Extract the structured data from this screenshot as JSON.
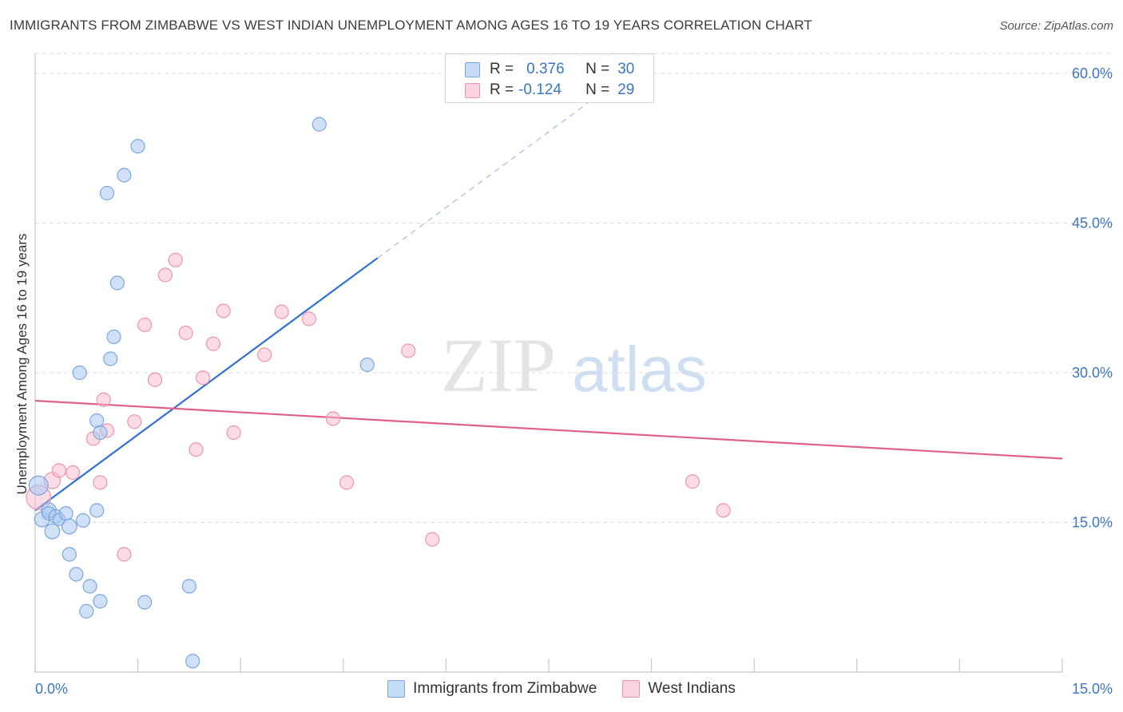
{
  "header": {
    "title": "IMMIGRANTS FROM ZIMBABWE VS WEST INDIAN UNEMPLOYMENT AMONG AGES 16 TO 19 YEARS CORRELATION CHART",
    "source": "Source: ZipAtlas.com"
  },
  "watermark": {
    "zip": "ZIP",
    "atlas": "atlas"
  },
  "colors": {
    "blue_fill": "#a9c8f0",
    "blue_stroke": "#7aa6de",
    "blue_line": "#3070d0",
    "pink_fill": "#f7b9cc",
    "pink_stroke": "#ec93b0",
    "pink_line": "#e0608c",
    "axis_text": "#3b76c4",
    "grid": "#dddddd"
  },
  "legend": {
    "r_label": "R =",
    "n_label": "N =",
    "series": [
      {
        "r": "0.376",
        "n": "30"
      },
      {
        "r": "-0.124",
        "n": "29"
      }
    ]
  },
  "chart_data": {
    "type": "scatter",
    "title": "IMMIGRANTS FROM ZIMBABWE VS WEST INDIAN UNEMPLOYMENT AMONG AGES 16 TO 19 YEARS CORRELATION CHART",
    "xlabel": "",
    "ylabel": "Unemployment Among Ages 16 to 19 years",
    "xlim": [
      0,
      15
    ],
    "ylim": [
      0,
      62
    ],
    "x_tick_labels": [
      {
        "value": 0,
        "label": "0.0%"
      },
      {
        "value": 15,
        "label": "15.0%"
      }
    ],
    "y_ticks": [
      {
        "value": 15,
        "label": "15.0%"
      },
      {
        "value": 30,
        "label": "30.0%"
      },
      {
        "value": 45,
        "label": "45.0%"
      },
      {
        "value": 60,
        "label": "60.0%"
      }
    ],
    "grid": true,
    "series": [
      {
        "name": "Immigrants from Zimbabwe",
        "r": 0.376,
        "n": 30,
        "points": [
          [
            0.05,
            18.7,
            14
          ],
          [
            0.1,
            15.3,
            11
          ],
          [
            0.2,
            16.2,
            11
          ],
          [
            0.25,
            14.1,
            11
          ],
          [
            0.2,
            15.9,
            10
          ],
          [
            0.3,
            15.6,
            10
          ],
          [
            0.35,
            15.3,
            9
          ],
          [
            0.45,
            15.9,
            10
          ],
          [
            0.5,
            14.6,
            11
          ],
          [
            0.5,
            11.8,
            10
          ],
          [
            0.6,
            9.8,
            10
          ],
          [
            0.7,
            15.2,
            10
          ],
          [
            0.75,
            6.1,
            10
          ],
          [
            0.8,
            8.6,
            10
          ],
          [
            0.9,
            16.2,
            10
          ],
          [
            0.95,
            7.1,
            10
          ],
          [
            0.65,
            30.0,
            10
          ],
          [
            0.9,
            25.2,
            10
          ],
          [
            1.1,
            31.4,
            10
          ],
          [
            1.15,
            33.6,
            10
          ],
          [
            1.05,
            48.0,
            10
          ],
          [
            1.3,
            49.8,
            10
          ],
          [
            1.2,
            39.0,
            10
          ],
          [
            1.5,
            52.7,
            10
          ],
          [
            1.6,
            7.0,
            10
          ],
          [
            2.25,
            8.6,
            10
          ],
          [
            2.3,
            1.1,
            10
          ],
          [
            4.15,
            54.9,
            10
          ],
          [
            4.85,
            30.8,
            10
          ],
          [
            0.95,
            24.0,
            10
          ]
        ],
        "trend": {
          "x1": 0.0,
          "y1": 16.2,
          "x2": 5.0,
          "y2": 41.5,
          "x_dash_end": 8.3,
          "y_dash_end": 58.2
        }
      },
      {
        "name": "West Indians",
        "r": -0.124,
        "n": 29,
        "points": [
          [
            0.05,
            17.5,
            18
          ],
          [
            0.25,
            19.2,
            12
          ],
          [
            0.35,
            20.2,
            10
          ],
          [
            0.55,
            20.0,
            10
          ],
          [
            0.85,
            23.4,
            10
          ],
          [
            0.95,
            19.0,
            10
          ],
          [
            1.0,
            27.3,
            10
          ],
          [
            1.05,
            24.2,
            10
          ],
          [
            1.3,
            11.8,
            10
          ],
          [
            1.45,
            25.1,
            10
          ],
          [
            1.6,
            34.8,
            10
          ],
          [
            1.75,
            29.3,
            10
          ],
          [
            1.9,
            39.8,
            10
          ],
          [
            2.05,
            41.3,
            10
          ],
          [
            2.2,
            34.0,
            10
          ],
          [
            2.35,
            22.3,
            10
          ],
          [
            2.45,
            29.5,
            10
          ],
          [
            2.6,
            32.9,
            10
          ],
          [
            2.75,
            36.2,
            10
          ],
          [
            2.9,
            24.0,
            10
          ],
          [
            3.35,
            31.8,
            10
          ],
          [
            3.6,
            36.1,
            10
          ],
          [
            4.0,
            35.4,
            10
          ],
          [
            4.35,
            25.4,
            10
          ],
          [
            4.55,
            19.0,
            10
          ],
          [
            5.45,
            32.2,
            10
          ],
          [
            5.8,
            13.3,
            10
          ],
          [
            9.6,
            19.1,
            10
          ],
          [
            10.05,
            16.2,
            10
          ]
        ],
        "trend": {
          "x1": 0.0,
          "y1": 27.2,
          "x2": 15.0,
          "y2": 21.4
        }
      }
    ]
  },
  "bottom_legend": {
    "items": [
      {
        "label": "Immigrants from Zimbabwe"
      },
      {
        "label": "West Indians"
      }
    ]
  }
}
